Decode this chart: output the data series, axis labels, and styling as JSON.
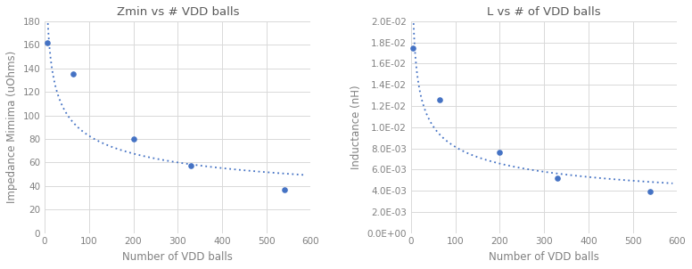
{
  "left": {
    "title": "Zmin vs # VDD balls",
    "xlabel": "Number of VDD balls",
    "ylabel": "Impedance Mimima (uOhms)",
    "x_data": [
      5,
      65,
      200,
      330,
      540
    ],
    "y_data": [
      162,
      135,
      80,
      57,
      37
    ],
    "xlim": [
      0,
      600
    ],
    "ylim": [
      0,
      180
    ],
    "xticks": [
      0,
      100,
      200,
      300,
      400,
      500,
      600
    ],
    "yticks": [
      0,
      20,
      40,
      60,
      80,
      100,
      120,
      140,
      160,
      180
    ]
  },
  "right": {
    "title": "L vs # of VDD balls",
    "xlabel": "Number of VDD balls",
    "ylabel": "Inductance (nH)",
    "x_data": [
      5,
      65,
      200,
      330,
      540
    ],
    "y_data": [
      0.0175,
      0.0126,
      0.0076,
      0.0052,
      0.0039
    ],
    "xlim": [
      0,
      600
    ],
    "ylim": [
      0,
      0.02
    ],
    "xticks": [
      0,
      100,
      200,
      300,
      400,
      500,
      600
    ],
    "yticks": [
      0.0,
      0.002,
      0.004,
      0.006,
      0.008,
      0.01,
      0.012,
      0.014,
      0.016,
      0.018,
      0.02
    ]
  },
  "dot_color": "#4472c4",
  "line_color": "#4472c4",
  "bg_color": "#ffffff",
  "title_color": "#595959",
  "axis_label_color": "#808080",
  "tick_color": "#808080",
  "grid_color": "#d9d9d9"
}
